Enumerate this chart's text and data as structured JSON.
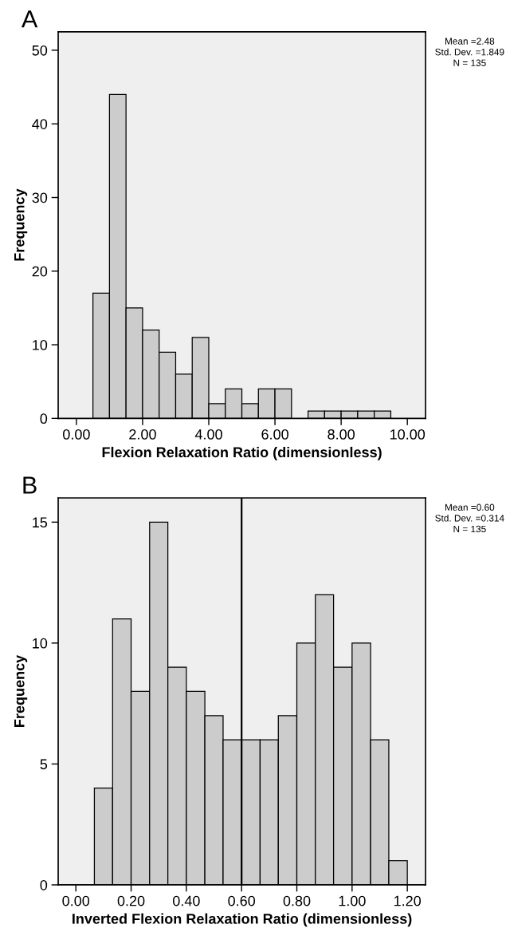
{
  "chart_data": [
    {
      "type": "histogram",
      "title": "A",
      "xlabel": "Flexion Relaxation Ratio (dimensionless)",
      "ylabel": "Frequency",
      "bins": [
        0.5,
        1.0,
        1.5,
        2.0,
        2.5,
        3.0,
        3.5,
        4.0,
        4.5,
        5.0,
        5.5,
        6.0,
        6.5,
        7.0,
        7.5,
        8.0,
        8.5,
        9.0,
        9.5
      ],
      "values": [
        17,
        44,
        15,
        12,
        9,
        6,
        11,
        2,
        4,
        2,
        4,
        4,
        0,
        1,
        1,
        1,
        1,
        1
      ],
      "color": "#cccccc",
      "xlim": [
        -0.55,
        10.55
      ],
      "xticks": [
        {
          "value": 0,
          "label": "0.00"
        },
        {
          "value": 2,
          "label": "2.00"
        },
        {
          "value": 4,
          "label": "4.00"
        },
        {
          "value": 6,
          "label": "6.00"
        },
        {
          "value": 8,
          "label": "8.00"
        },
        {
          "value": 10,
          "label": "10.00"
        }
      ],
      "ylim": [
        0,
        52.5
      ],
      "yticks": [
        0,
        10,
        20,
        30,
        40,
        50
      ],
      "grid": false,
      "annotations": [
        "Mean =2.48\nStd. Dev. =1.849\nN = 135"
      ]
    },
    {
      "type": "histogram",
      "title": "B",
      "xlabel": "Inverted Flexion Relaxation Ratio (dimensionless)",
      "ylabel": "Frequency",
      "bins": [
        0.067,
        0.133,
        0.2,
        0.267,
        0.333,
        0.4,
        0.467,
        0.533,
        0.6,
        0.667,
        0.733,
        0.8,
        0.867,
        0.933,
        1.0,
        1.067,
        1.133,
        1.2
      ],
      "values": [
        4,
        11,
        8,
        15,
        9,
        8,
        7,
        6,
        6,
        6,
        7,
        10,
        12,
        9,
        10,
        6,
        1
      ],
      "color": "#cccccc",
      "xlim": [
        -0.064,
        1.266
      ],
      "xticks": [
        {
          "value": 0,
          "label": "0.00"
        },
        {
          "value": 0.2,
          "label": "0.20"
        },
        {
          "value": 0.4,
          "label": "0.40"
        },
        {
          "value": 0.6,
          "label": "0.60"
        },
        {
          "value": 0.8,
          "label": "0.80"
        },
        {
          "value": 1.0,
          "label": "1.00"
        },
        {
          "value": 1.2,
          "label": "1.20"
        }
      ],
      "ylim": [
        0,
        16
      ],
      "yticks": [
        0,
        5,
        10,
        15
      ],
      "grid": false,
      "ref_lines": [
        {
          "axis": "x",
          "value": 0.6,
          "color": "#000000"
        }
      ],
      "annotations": [
        "Mean =0.60\nStd. Dev. =0.314\nN = 135"
      ]
    }
  ]
}
